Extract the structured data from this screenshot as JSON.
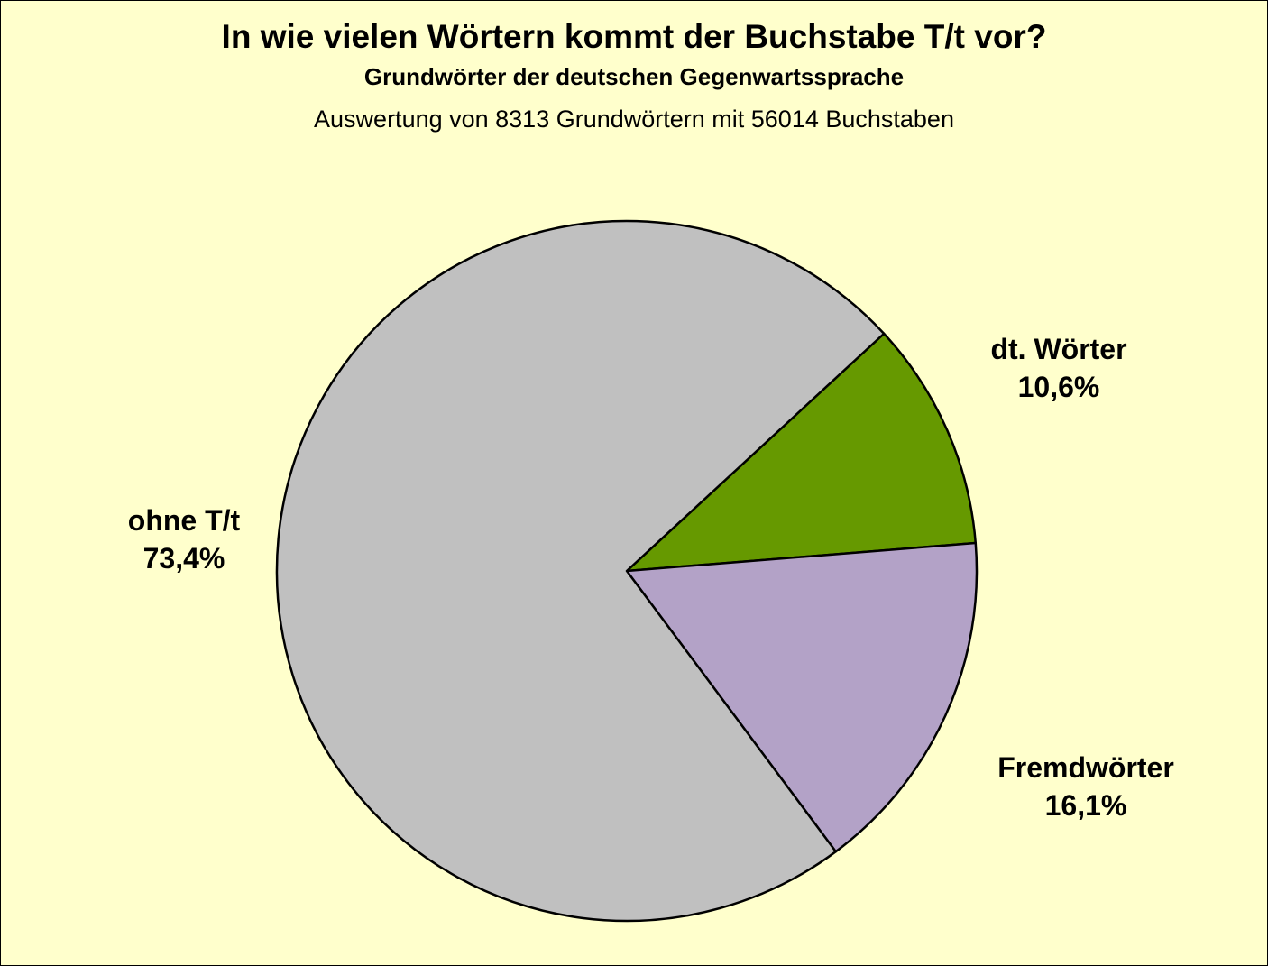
{
  "chart_data": {
    "type": "pie",
    "title": "In wie vielen Wörtern kommt der Buchstabe T/t vor?",
    "subtitle": "Grundwörter der deutschen Gegenwartssprache",
    "note": "Auswertung von 8313 Grundwörtern mit 56014 Buchstaben",
    "start_angle_deg_clockwise_from_north": 47.3,
    "direction": "clockwise",
    "slices": [
      {
        "name": "dt. Wörter",
        "value": 10.6,
        "label": "10,6%",
        "color": "#669900"
      },
      {
        "name": "Fremdwörter",
        "value": 16.1,
        "label": "16,1%",
        "color": "#B3A2C7"
      },
      {
        "name": "ohne T/t",
        "value": 73.4,
        "label": "73,4%",
        "color": "#C0C0C0"
      }
    ],
    "background": "#FFFFCC"
  }
}
